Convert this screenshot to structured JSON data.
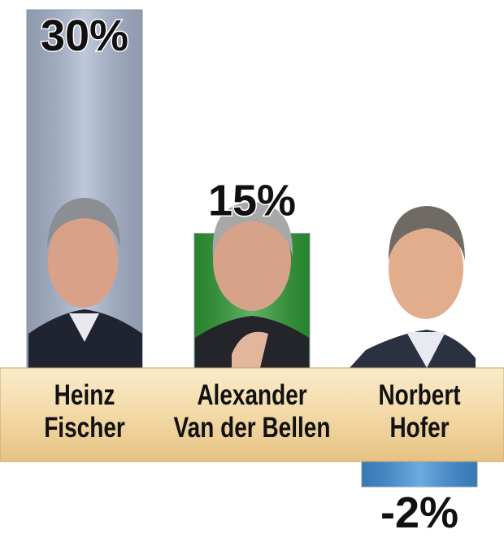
{
  "chart_data": {
    "type": "bar",
    "categories": [
      "Heinz\nFischer",
      "Alexander\nVan der Bellen",
      "Norbert\nHofer"
    ],
    "values": [
      30,
      15,
      -2
    ],
    "value_labels": [
      "30%",
      "15%",
      "-2%"
    ],
    "colors": [
      "#a9b6cf",
      "#2e9a34",
      "#3f8fd8"
    ],
    "ylim": [
      -2,
      30
    ]
  }
}
